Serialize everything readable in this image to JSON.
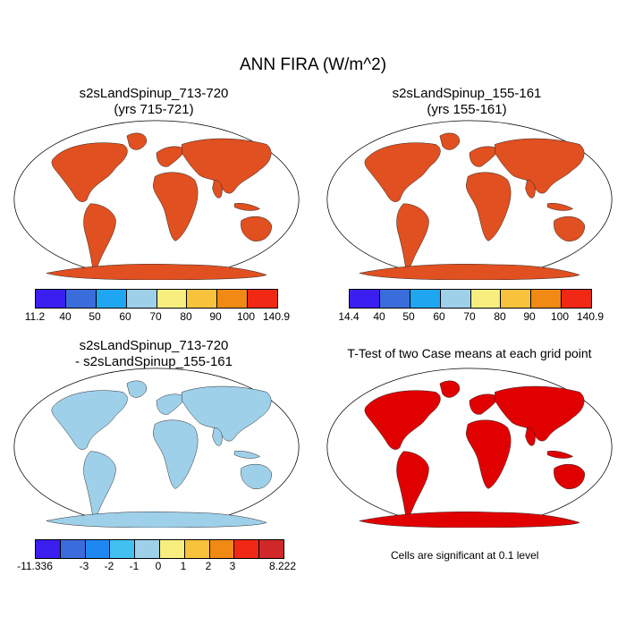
{
  "main_title": "ANN FIRA (W/m^2)",
  "panels": [
    {
      "title1": "s2sLandSpinup_713-720",
      "title2": "(yrs 715-721)"
    },
    {
      "title1": "s2sLandSpinup_155-161",
      "title2": "(yrs 155-161)"
    },
    {
      "title1": "s2sLandSpinup_713-720",
      "title2": "- s2sLandSpinup_155-161"
    },
    {
      "title1": "T-Test of two Case means at each grid point"
    }
  ],
  "colorbars": [
    {
      "labels": [
        "11.2",
        "40",
        "50",
        "60",
        "70",
        "80",
        "90",
        "100",
        "140.9"
      ],
      "colors": [
        "#3b1ff0",
        "#3b6cdc",
        "#1ea7f0",
        "#9fd0ea",
        "#f8ee80",
        "#f8c23c",
        "#f08a14",
        "#f02814",
        "#d02828"
      ]
    },
    {
      "labels": [
        "14.4",
        "40",
        "50",
        "60",
        "70",
        "80",
        "90",
        "100",
        "140.9"
      ],
      "colors": [
        "#3b1ff0",
        "#3b6cdc",
        "#1ea7f0",
        "#9fd0ea",
        "#f8ee80",
        "#f8c23c",
        "#f08a14",
        "#f02814",
        "#d02828"
      ]
    },
    {
      "labels": [
        "-11.336",
        "-3",
        "-2",
        "-1",
        "0",
        "1",
        "2",
        "3",
        "8.222"
      ],
      "colors": [
        "#3b1ff0",
        "#3b6cdc",
        "#1e87f0",
        "#42c0f0",
        "#9fd0ea",
        "#f8ee80",
        "#f8c23c",
        "#f08a14",
        "#f02814",
        "#d02828"
      ]
    }
  ],
  "note": "Cells are significant at 0.1 level",
  "icons": {
    "continent": "world-continents"
  }
}
